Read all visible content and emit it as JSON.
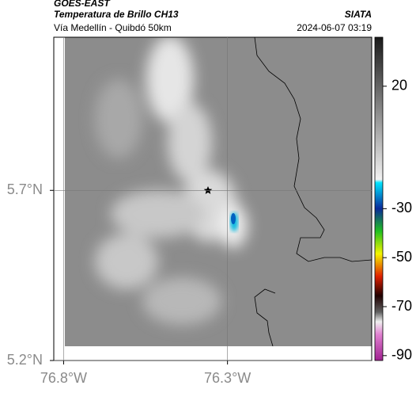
{
  "header": {
    "title": "GOES-EAST",
    "subtitle": "Temperatura de Brillo CH13",
    "source": "SIATA",
    "location": "Vía Medellín - Quibdó 50km",
    "datetime": "2024-06-07 03:19"
  },
  "map": {
    "xlim": [
      -76.83,
      -75.86
    ],
    "ylim": [
      5.2,
      6.15
    ],
    "xticks": [
      {
        "value": -76.8,
        "label": "76.8°W"
      },
      {
        "value": -76.3,
        "label": "76.3°W"
      }
    ],
    "yticks": [
      {
        "value": 5.2,
        "label": "5.2°N"
      },
      {
        "value": 5.7,
        "label": "5.7°N"
      }
    ],
    "grid": true
  },
  "colorbar": {
    "lim": [
      -92,
      40
    ],
    "ticks": [
      20,
      -30,
      -50,
      -70,
      -90
    ]
  }
}
